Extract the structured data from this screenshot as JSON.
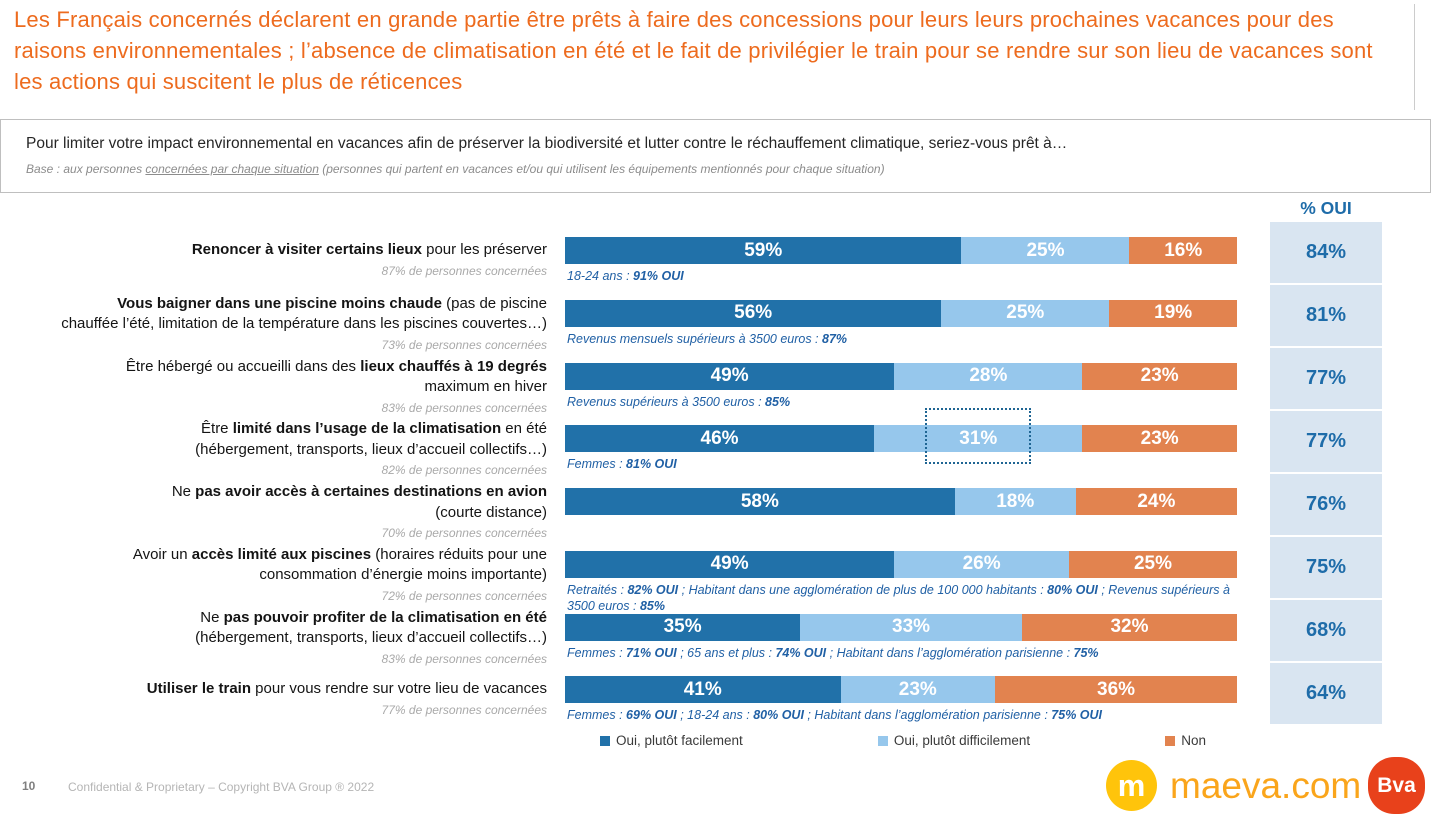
{
  "title": "Les Français concernés déclarent en grande partie être prêts à faire des concessions pour leurs leurs prochaines vacances pour des raisons environnementales ; l’absence de climatisation en été et le fait de privilégier le train pour se rendre sur son lieu de vacances sont les actions qui suscitent le plus de réticences",
  "question": {
    "text": "Pour limiter votre impact environnemental en vacances afin de préserver la biodiversité et lutter contre le réchauffement climatique, seriez-vous prêt à…",
    "base_prefix": "Base : aux personnes ",
    "base_underlined": "concernées par chaque situation",
    "base_suffix": " (personnes qui partent en vacances et/ou qui utilisent les équipements mentionnés pour chaque situation)"
  },
  "colors": {
    "title_accent": "#ED6B1E",
    "annotation_blue": "#2060A5",
    "oui_column_bg": "#D9E5F1",
    "oui_text": "#1E6CA9"
  },
  "chart_data": {
    "type": "bar",
    "stacked": true,
    "orientation": "horizontal",
    "value_unit": "%",
    "axis_range": [
      0,
      100
    ],
    "series_names": [
      "Oui, plutôt facilement",
      "Oui, plutôt difficilement",
      "Non"
    ],
    "segment_colors": [
      "#2171A9",
      "#96C7EC",
      "#E2834F"
    ],
    "oui_header": "% OUI",
    "highlight": {
      "row_index": 3,
      "segment_index": 1
    },
    "rows": [
      {
        "label_segments": [
          {
            "text": "Renoncer à visiter certains lieux",
            "bold": true
          },
          {
            "text": " pour les préserver",
            "bold": false
          }
        ],
        "base": "87% de personnes concernées",
        "values": [
          59,
          25,
          16
        ],
        "oui_total": "84%",
        "annotation_segments": [
          {
            "text": "18-24 ans : ",
            "bold": false
          },
          {
            "text": "91% OUI",
            "bold": true
          }
        ]
      },
      {
        "label_segments": [
          {
            "text": "Vous baigner dans une piscine moins chaude",
            "bold": true
          },
          {
            "text": " (pas de piscine\nchauffée l’été, limitation de la température dans les piscines couvertes…)",
            "bold": false
          }
        ],
        "base": "73% de personnes concernées",
        "values": [
          56,
          25,
          19
        ],
        "oui_total": "81%",
        "annotation_segments": [
          {
            "text": "Revenus mensuels supérieurs à 3500 euros : ",
            "bold": false
          },
          {
            "text": "87%",
            "bold": true
          }
        ]
      },
      {
        "label_segments": [
          {
            "text": "Être hébergé ou accueilli dans des ",
            "bold": false
          },
          {
            "text": "lieux chauffés à 19 degrés",
            "bold": true
          },
          {
            "text": "\nmaximum en hiver",
            "bold": false
          }
        ],
        "base": "83% de personnes concernées",
        "values": [
          49,
          28,
          23
        ],
        "oui_total": "77%",
        "annotation_segments": [
          {
            "text": "Revenus supérieurs à 3500 euros : ",
            "bold": false
          },
          {
            "text": "85%",
            "bold": true
          }
        ]
      },
      {
        "label_segments": [
          {
            "text": "Être ",
            "bold": false
          },
          {
            "text": "limité dans l’usage de la climatisation",
            "bold": true
          },
          {
            "text": " en été\n(hébergement, transports, lieux d’accueil collectifs…)",
            "bold": false
          }
        ],
        "base": "82% de personnes concernées",
        "values": [
          46,
          31,
          23
        ],
        "oui_total": "77%",
        "annotation_segments": [
          {
            "text": "Femmes : ",
            "bold": false
          },
          {
            "text": "81% OUI",
            "bold": true
          }
        ]
      },
      {
        "label_segments": [
          {
            "text": "Ne ",
            "bold": false
          },
          {
            "text": "pas avoir accès à certaines destinations en avion",
            "bold": true
          },
          {
            "text": "\n(courte distance)",
            "bold": false
          }
        ],
        "base": "70% de personnes concernées",
        "values": [
          58,
          18,
          24
        ],
        "oui_total": "76%",
        "annotation_segments": []
      },
      {
        "label_segments": [
          {
            "text": "Avoir un ",
            "bold": false
          },
          {
            "text": "accès limité aux piscines",
            "bold": true
          },
          {
            "text": " (horaires réduits pour une\nconsommation d’énergie moins importante)",
            "bold": false
          }
        ],
        "base": "72% de personnes concernées",
        "values": [
          49,
          26,
          25
        ],
        "oui_total": "75%",
        "annotation_segments": [
          {
            "text": "Retraités : ",
            "bold": false
          },
          {
            "text": "82% OUI",
            "bold": true
          },
          {
            "text": " ; Habitant dans une agglomération de plus de 100 000 habitants : ",
            "bold": false
          },
          {
            "text": "80% OUI",
            "bold": true
          },
          {
            "text": " ; Revenus supérieurs à 3500 euros : ",
            "bold": false
          },
          {
            "text": "85%",
            "bold": true
          }
        ]
      },
      {
        "label_segments": [
          {
            "text": "Ne ",
            "bold": false
          },
          {
            "text": "pas pouvoir profiter de la climatisation en été",
            "bold": true
          },
          {
            "text": "\n(hébergement, transports, lieux d’accueil collectifs…)",
            "bold": false
          }
        ],
        "base": "83% de personnes concernées",
        "values": [
          35,
          33,
          32
        ],
        "oui_total": "68%",
        "annotation_segments": [
          {
            "text": "Femmes : ",
            "bold": false
          },
          {
            "text": "71% OUI",
            "bold": true
          },
          {
            "text": " ; 65 ans et plus : ",
            "bold": false
          },
          {
            "text": "74% OUI",
            "bold": true
          },
          {
            "text": " ; Habitant dans l’agglomération parisienne : ",
            "bold": false
          },
          {
            "text": "75%",
            "bold": true
          }
        ]
      },
      {
        "label_segments": [
          {
            "text": "Utiliser le train",
            "bold": true
          },
          {
            "text": " pour vous rendre sur votre lieu de vacances",
            "bold": false
          }
        ],
        "base": "77% de personnes concernées",
        "values": [
          41,
          23,
          36
        ],
        "oui_total": "64%",
        "annotation_segments": [
          {
            "text": "Femmes : ",
            "bold": false
          },
          {
            "text": "69% OUI",
            "bold": true
          },
          {
            "text": " ; 18-24 ans : ",
            "bold": false
          },
          {
            "text": "80% OUI",
            "bold": true
          },
          {
            "text": " ; Habitant dans l’agglomération parisienne : ",
            "bold": false
          },
          {
            "text": "75% OUI",
            "bold": true
          }
        ]
      }
    ]
  },
  "legend": {
    "items": [
      {
        "label": "Oui, plutôt facilement",
        "color": "#2171A9"
      },
      {
        "label": "Oui, plutôt difficilement",
        "color": "#96C7EC"
      },
      {
        "label": "Non",
        "color": "#E2834F"
      }
    ]
  },
  "footer": {
    "page_number": "10",
    "copyright": "Confidential & Proprietary – Copyright BVA Group ®  2022",
    "maeva_icon": "m",
    "maeva_text": "maeva.com",
    "bva_text": "Bva"
  }
}
